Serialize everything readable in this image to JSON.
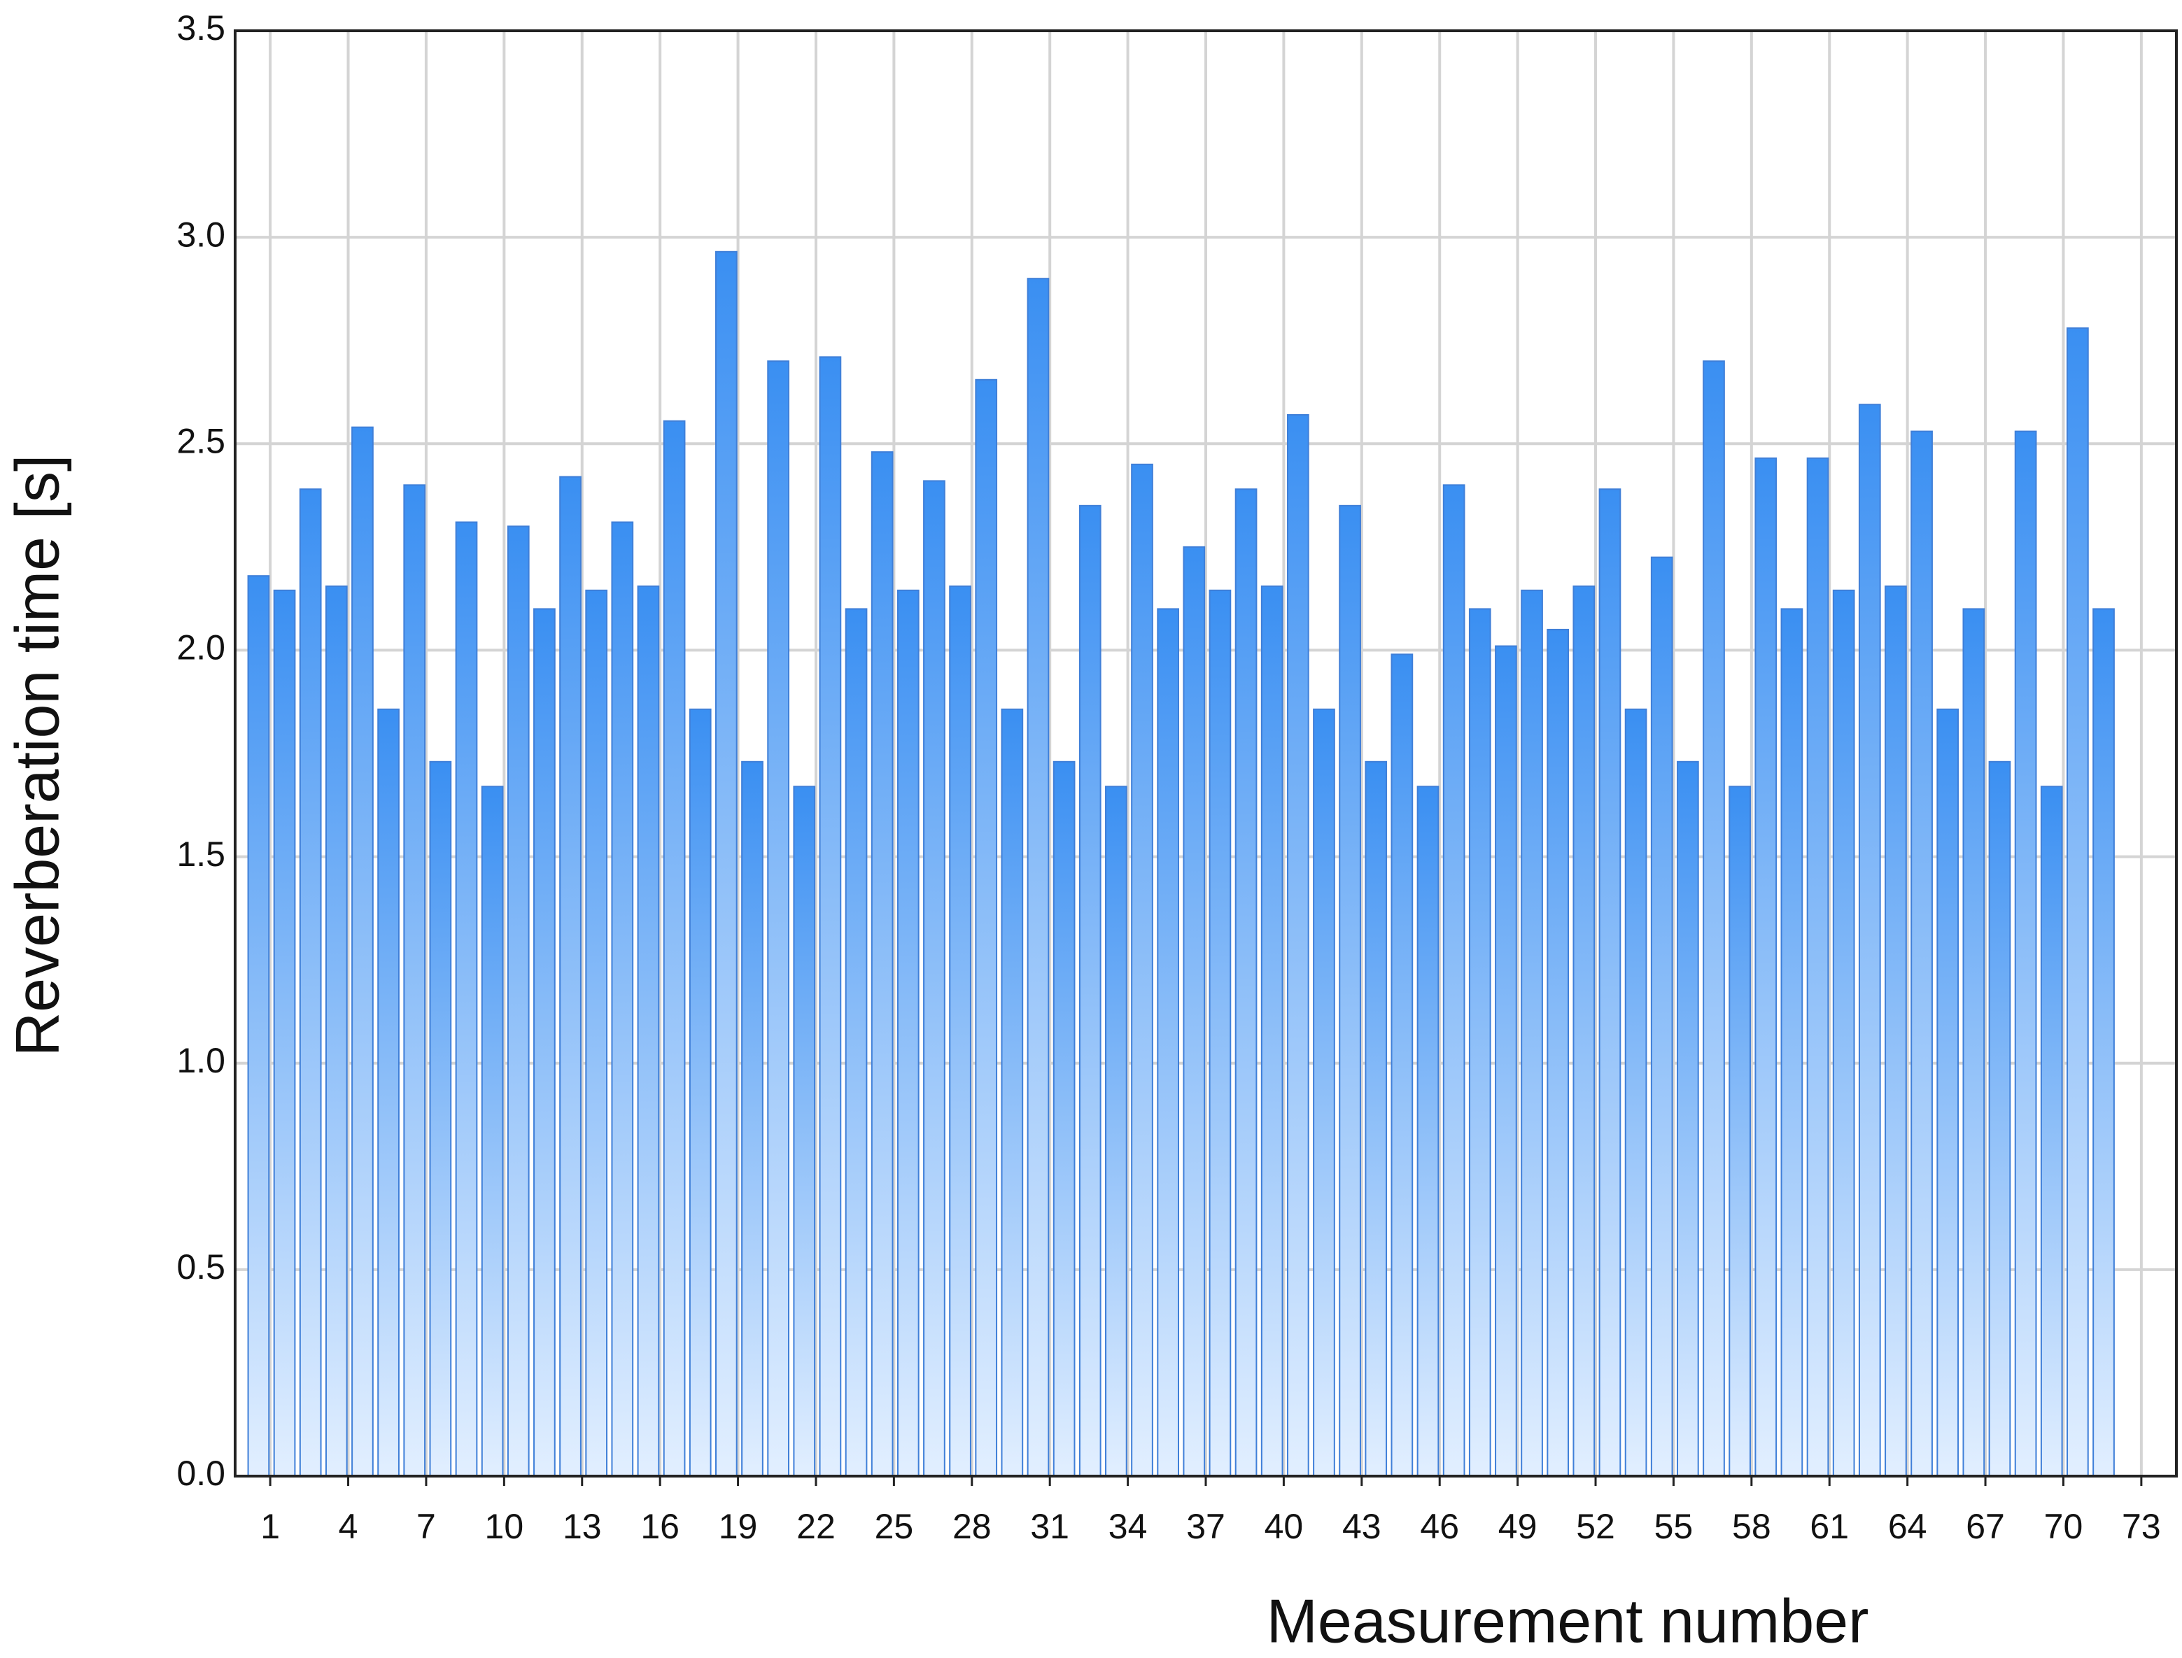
{
  "chart_data": {
    "type": "bar",
    "xlabel": "Measurement number",
    "ylabel": "Reverberation time   [s]",
    "color": "#3a8ff2",
    "x": [
      1,
      2,
      3,
      4,
      5,
      6,
      7,
      8,
      9,
      10,
      11,
      12,
      13,
      14,
      15,
      16,
      17,
      18,
      19,
      20,
      21,
      22,
      23,
      24,
      25,
      26,
      27,
      28,
      29,
      30,
      31,
      32,
      33,
      34,
      35,
      36,
      37,
      38,
      39,
      40,
      41,
      42,
      43,
      44,
      45,
      46,
      47,
      48,
      49,
      50,
      51,
      52,
      53,
      54,
      55,
      56,
      57,
      58,
      59,
      60,
      61,
      62,
      63,
      64,
      65,
      66,
      67,
      68,
      69,
      70,
      71,
      72
    ],
    "values": [
      2.18,
      2.145,
      2.39,
      2.155,
      2.54,
      1.857,
      2.4,
      1.73,
      2.31,
      1.67,
      2.3,
      2.1,
      2.42,
      2.145,
      2.31,
      2.155,
      2.555,
      1.857,
      2.965,
      1.73,
      2.7,
      1.67,
      2.71,
      2.1,
      2.48,
      2.145,
      2.41,
      2.155,
      2.655,
      1.857,
      2.9,
      1.73,
      2.35,
      1.67,
      2.45,
      2.1,
      2.25,
      2.145,
      2.39,
      2.155,
      2.57,
      1.857,
      2.35,
      1.73,
      1.99,
      1.67,
      2.4,
      2.1,
      2.01,
      2.145,
      2.05,
      2.155,
      2.39,
      1.857,
      2.225,
      1.73,
      2.7,
      1.67,
      2.465,
      2.1,
      2.465,
      2.145,
      2.595,
      2.155,
      2.53,
      1.857,
      2.1,
      1.73,
      2.53,
      1.67,
      2.78,
      2.1
    ],
    "xlim": [
      -0.35,
      74.35
    ],
    "xticks": [
      1,
      4,
      7,
      10,
      13,
      16,
      19,
      22,
      25,
      28,
      31,
      34,
      37,
      40,
      43,
      46,
      49,
      52,
      55,
      58,
      61,
      64,
      67,
      70,
      73
    ],
    "ylim": [
      0,
      3.5
    ],
    "yticks": [
      {
        "value": 0,
        "label": "0.0"
      },
      0.5,
      {
        "value": 1,
        "label": "1.0"
      },
      1.5,
      {
        "value": 2,
        "label": "2.0"
      },
      2.5,
      {
        "value": 3,
        "label": "3.0"
      },
      3.5
    ],
    "grid": true
  }
}
